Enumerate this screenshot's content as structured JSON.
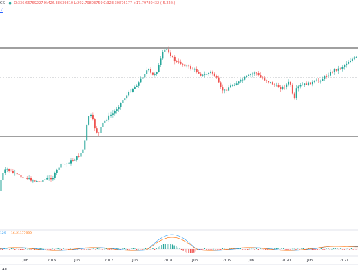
{
  "legend": {
    "symbol": "CK",
    "ohlc_values": "O:336.66769227  H:426.38639810  L:292.79803759  C:323.30876177  ∗17.79780432 (-5.22%)",
    "indicator_value_1": "129",
    "indicator_value_2": "16.21177999"
  },
  "controls": {
    "collapse_label": "∨",
    "range_all_label": "All"
  },
  "colors": {
    "up": "#26a69a",
    "down": "#ef5350",
    "macd_line": "#2196f3",
    "signal_line": "#ff6d00",
    "hist_up": "#26a69a",
    "hist_down": "#ef5350",
    "hline": "#000000",
    "dotted_line": "#787b86"
  },
  "chart_data": {
    "type": "candlestick",
    "x_ticks": [
      "Jun",
      "2016",
      "Jun",
      "2017",
      "Jun",
      "2018",
      "Jun",
      "2019",
      "Jun",
      "2020",
      "Jun",
      "2021"
    ],
    "horizontal_levels": [
      {
        "value": 0.81,
        "style": "solid"
      },
      {
        "value": 0.695,
        "style": "dotted"
      },
      {
        "value": 0.42,
        "style": "solid"
      }
    ]
  }
}
